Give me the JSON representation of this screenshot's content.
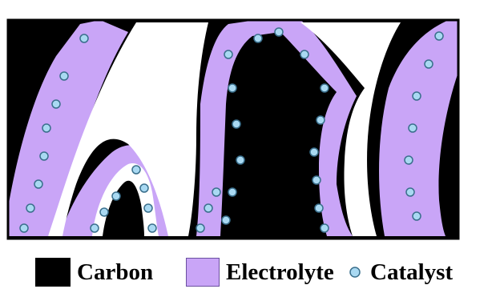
{
  "legend": {
    "carbon_label": "Carbon",
    "electrolyte_label": "Electrolyte",
    "catalyst_label": "Catalyst"
  },
  "colors": {
    "carbon": "#000000",
    "electrolyte": "#c9a5f7",
    "catalyst": "#a9d9f2",
    "catalyst_outline": "#3a6f8c",
    "background": "#ffffff"
  }
}
